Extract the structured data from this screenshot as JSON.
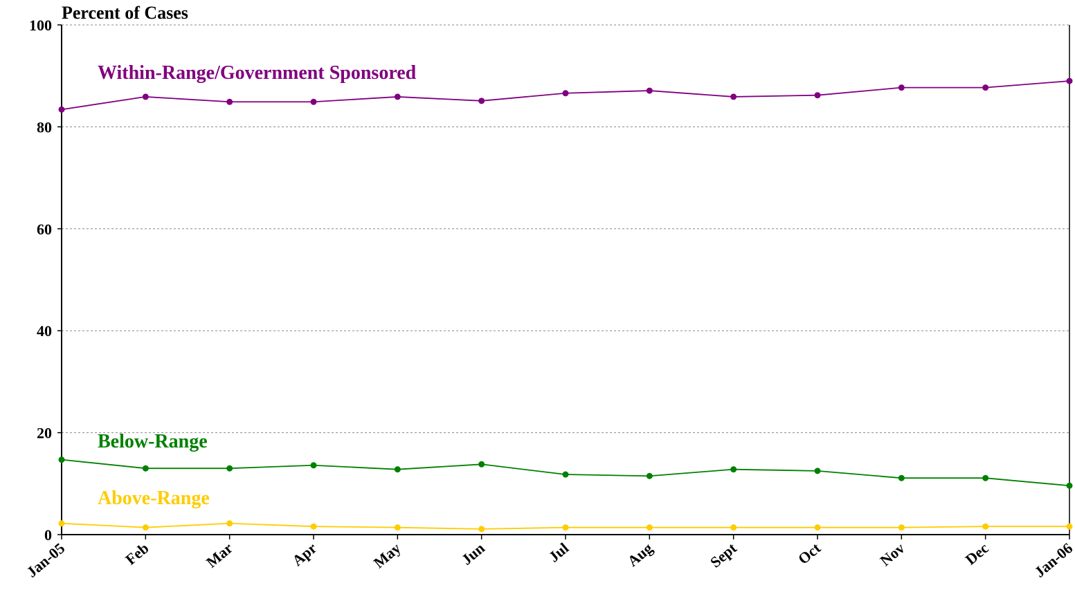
{
  "chart_data": {
    "type": "line",
    "y_label": "Percent of Cases",
    "categories": [
      "Jan-05",
      "Feb",
      "Mar",
      "Apr",
      "May",
      "Jun",
      "Jul",
      "Aug",
      "Sept",
      "Oct",
      "Nov",
      "Dec",
      "Jan-06"
    ],
    "series": [
      {
        "name": "Within-Range/Government Sponsored",
        "color": "#800080",
        "values": [
          83.4,
          85.9,
          84.9,
          84.9,
          85.9,
          85.1,
          86.6,
          87.1,
          85.9,
          86.2,
          87.7,
          87.7,
          89.0
        ]
      },
      {
        "name": "Below-Range",
        "color": "#008000",
        "values": [
          14.7,
          13.0,
          13.0,
          13.6,
          12.8,
          13.8,
          11.8,
          11.5,
          12.8,
          12.5,
          11.1,
          11.1,
          9.6
        ]
      },
      {
        "name": "Above-Range",
        "color": "#FFCC00",
        "values": [
          2.2,
          1.4,
          2.2,
          1.6,
          1.4,
          1.1,
          1.4,
          1.4,
          1.4,
          1.4,
          1.4,
          1.6,
          1.6
        ]
      }
    ],
    "ylim": [
      0,
      100
    ],
    "yticks": [
      0,
      20,
      40,
      60,
      80,
      100
    ],
    "grid": true
  }
}
